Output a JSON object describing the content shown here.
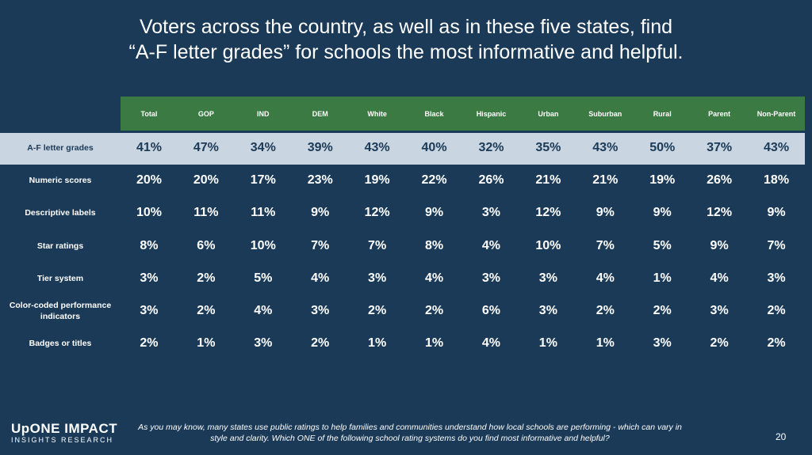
{
  "title": {
    "lines": [
      "Voters across the country, as well as in these five states, find",
      "“A-F letter grades” for schools the most informative and helpful."
    ]
  },
  "table": {
    "columns": [
      "Total",
      "GOP",
      "IND",
      "DEM",
      "White",
      "Black",
      "Hispanic",
      "Urban",
      "Suburban",
      "Rural",
      "Parent",
      "Non-Parent"
    ],
    "rows": [
      {
        "label": "A-F letter grades",
        "values": [
          "41%",
          "47%",
          "34%",
          "39%",
          "43%",
          "40%",
          "32%",
          "35%",
          "43%",
          "50%",
          "37%",
          "43%"
        ]
      },
      {
        "label": "Numeric scores",
        "values": [
          "20%",
          "20%",
          "17%",
          "23%",
          "19%",
          "22%",
          "26%",
          "21%",
          "21%",
          "19%",
          "26%",
          "18%"
        ]
      },
      {
        "label": "Descriptive labels",
        "values": [
          "10%",
          "11%",
          "11%",
          "9%",
          "12%",
          "9%",
          "3%",
          "12%",
          "9%",
          "9%",
          "12%",
          "9%"
        ]
      },
      {
        "label": "Star ratings",
        "values": [
          "8%",
          "6%",
          "10%",
          "7%",
          "7%",
          "8%",
          "4%",
          "10%",
          "7%",
          "5%",
          "9%",
          "7%"
        ]
      },
      {
        "label": "Tier system",
        "values": [
          "3%",
          "2%",
          "5%",
          "4%",
          "3%",
          "4%",
          "3%",
          "3%",
          "4%",
          "1%",
          "4%",
          "3%"
        ]
      },
      {
        "label": "Color-coded performance indicators",
        "values": [
          "3%",
          "2%",
          "4%",
          "3%",
          "2%",
          "2%",
          "6%",
          "3%",
          "2%",
          "2%",
          "3%",
          "2%"
        ]
      },
      {
        "label": "Badges or titles",
        "values": [
          "2%",
          "1%",
          "3%",
          "2%",
          "1%",
          "1%",
          "4%",
          "1%",
          "1%",
          "3%",
          "2%",
          "2%"
        ]
      }
    ]
  },
  "logo": {
    "top": "UpONE IMPACT",
    "bottom": "INSIGHTS RESEARCH"
  },
  "footnote": "As you may know, many states use public ratings to help families and communities understand how local schools are performing - which can vary in style and clarity. Which ONE of the following school rating systems do you find most informative and helpful?",
  "page_number": "20"
}
